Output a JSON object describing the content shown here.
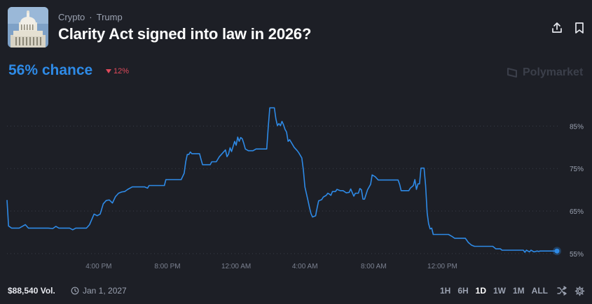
{
  "market": {
    "category": "Crypto",
    "subcategory": "Trump",
    "separator": "·",
    "title": "Clarity Act signed into law in 2026?",
    "chance_label": "56% chance",
    "change": "12%",
    "brand": "Polymarket"
  },
  "chart_data": {
    "type": "line",
    "x_labels": [
      "4:00 PM",
      "8:00 PM",
      "12:00 AM",
      "4:00 AM",
      "8:00 AM",
      "12:00 PM"
    ],
    "y_ticks": [
      "85%",
      "75%",
      "65%",
      "55%"
    ],
    "ylim": [
      53,
      90
    ],
    "grid": true,
    "series": [
      {
        "color": "#2e8ae6",
        "points": [
          [
            0,
            67.6
          ],
          [
            1,
            61.5
          ],
          [
            3,
            61.0
          ],
          [
            8,
            61.0
          ],
          [
            10,
            61.4
          ],
          [
            12,
            61.8
          ],
          [
            14,
            61.0
          ],
          [
            20,
            61.0
          ],
          [
            27,
            61.0
          ],
          [
            30,
            60.9
          ],
          [
            32,
            61.4
          ],
          [
            34,
            61.0
          ],
          [
            41,
            61.0
          ],
          [
            43,
            60.6
          ],
          [
            45,
            61.0
          ],
          [
            52,
            61.0
          ],
          [
            54,
            61.8
          ],
          [
            55,
            62.6
          ],
          [
            57,
            64.3
          ],
          [
            59,
            63.9
          ],
          [
            61,
            64.3
          ],
          [
            63,
            66.7
          ],
          [
            65,
            67.5
          ],
          [
            67,
            67.6
          ],
          [
            69,
            66.9
          ],
          [
            71,
            68.4
          ],
          [
            73,
            69.2
          ],
          [
            75,
            69.5
          ],
          [
            77,
            69.6
          ],
          [
            79,
            70.1
          ],
          [
            82,
            70.7
          ],
          [
            86,
            70.7
          ],
          [
            90,
            70.7
          ],
          [
            92,
            70.4
          ],
          [
            93,
            71.0
          ],
          [
            98,
            71.0
          ],
          [
            103,
            71.0
          ],
          [
            104,
            72.4
          ],
          [
            108,
            72.4
          ],
          [
            114,
            72.4
          ],
          [
            116,
            73.9
          ],
          [
            117,
            76.6
          ],
          [
            118,
            78.3
          ],
          [
            119,
            78.3
          ],
          [
            120,
            78.9
          ],
          [
            121,
            78.5
          ],
          [
            126,
            78.5
          ],
          [
            127,
            77.2
          ],
          [
            128,
            75.9
          ],
          [
            130,
            75.9
          ],
          [
            133,
            75.9
          ],
          [
            134,
            76.6
          ],
          [
            137,
            76.6
          ],
          [
            139,
            77.8
          ],
          [
            141,
            78.6
          ],
          [
            143,
            79.4
          ],
          [
            144,
            77.8
          ],
          [
            145,
            78.4
          ],
          [
            146,
            79.9
          ],
          [
            147,
            79.0
          ],
          [
            149,
            81.4
          ],
          [
            150,
            80.5
          ],
          [
            151,
            82.4
          ],
          [
            152,
            81.4
          ],
          [
            153,
            82.3
          ],
          [
            154,
            82.0
          ],
          [
            155,
            80.9
          ],
          [
            156,
            79.6
          ],
          [
            158,
            79.2
          ],
          [
            161,
            79.2
          ],
          [
            163,
            79.6
          ],
          [
            166,
            79.6
          ],
          [
            168,
            79.6
          ],
          [
            170,
            79.6
          ],
          [
            171,
            84.8
          ],
          [
            172,
            89.3
          ],
          [
            173,
            89.3
          ],
          [
            174,
            89.3
          ],
          [
            175,
            89.3
          ],
          [
            176,
            86.7
          ],
          [
            177,
            85.1
          ],
          [
            178,
            85.6
          ],
          [
            179,
            85.1
          ],
          [
            180,
            86.1
          ],
          [
            181,
            85.3
          ],
          [
            182,
            84.2
          ],
          [
            183,
            83.6
          ],
          [
            184,
            81.4
          ],
          [
            185,
            81.8
          ],
          [
            186,
            81.2
          ],
          [
            188,
            80.0
          ],
          [
            190,
            79.2
          ],
          [
            191,
            78.7
          ],
          [
            193,
            77.5
          ],
          [
            194,
            74.7
          ],
          [
            195,
            70.7
          ],
          [
            197,
            67.5
          ],
          [
            198,
            65.8
          ],
          [
            199,
            64.4
          ],
          [
            200,
            63.6
          ],
          [
            202,
            63.9
          ],
          [
            203,
            65.8
          ],
          [
            204,
            67.4
          ],
          [
            206,
            67.7
          ],
          [
            207,
            68.3
          ],
          [
            209,
            68.7
          ],
          [
            210,
            69.2
          ],
          [
            211,
            69.0
          ],
          [
            212,
            68.7
          ],
          [
            213,
            69.6
          ],
          [
            215,
            69.6
          ],
          [
            216,
            70.1
          ],
          [
            218,
            69.8
          ],
          [
            220,
            69.8
          ],
          [
            222,
            69.3
          ],
          [
            224,
            69.4
          ],
          [
            225,
            70.2
          ],
          [
            227,
            68.5
          ],
          [
            228,
            69.2
          ],
          [
            230,
            69.2
          ],
          [
            231,
            70.3
          ],
          [
            232,
            70.0
          ],
          [
            233,
            67.8
          ],
          [
            234,
            67.8
          ],
          [
            236,
            70.0
          ],
          [
            238,
            71.3
          ],
          [
            239,
            73.5
          ],
          [
            241,
            73.1
          ],
          [
            243,
            72.3
          ],
          [
            246,
            72.3
          ],
          [
            250,
            72.3
          ],
          [
            254,
            72.3
          ],
          [
            256,
            72.3
          ],
          [
            257,
            71.3
          ],
          [
            258,
            69.8
          ],
          [
            260,
            69.8
          ],
          [
            263,
            69.8
          ],
          [
            264,
            70.4
          ],
          [
            266,
            71.0
          ],
          [
            267,
            72.4
          ],
          [
            268,
            70.1
          ],
          [
            269,
            71.4
          ],
          [
            270,
            71.4
          ],
          [
            271,
            75.1
          ],
          [
            273,
            75.1
          ],
          [
            274,
            71.0
          ],
          [
            275,
            64.6
          ],
          [
            276,
            62.0
          ],
          [
            277,
            60.8
          ],
          [
            278,
            61.0
          ],
          [
            279,
            59.5
          ],
          [
            281,
            59.5
          ],
          [
            285,
            59.5
          ],
          [
            289,
            59.5
          ],
          [
            291,
            59.1
          ],
          [
            293,
            58.6
          ],
          [
            297,
            58.6
          ],
          [
            300,
            58.6
          ],
          [
            302,
            57.6
          ],
          [
            304,
            57.0
          ],
          [
            306,
            56.7
          ],
          [
            310,
            56.7
          ],
          [
            314,
            56.7
          ],
          [
            318,
            56.7
          ],
          [
            320,
            56.1
          ],
          [
            323,
            56.1
          ],
          [
            324,
            55.8
          ],
          [
            328,
            55.8
          ],
          [
            331,
            55.8
          ],
          [
            335,
            55.8
          ],
          [
            338,
            55.8
          ],
          [
            339,
            55.3
          ],
          [
            340,
            55.8
          ],
          [
            342,
            55.4
          ],
          [
            343,
            55.8
          ],
          [
            345,
            55.4
          ],
          [
            347,
            55.6
          ],
          [
            348,
            55.5
          ],
          [
            349,
            55.6
          ],
          [
            350,
            55.6
          ],
          [
            351,
            55.6
          ],
          [
            352,
            55.6
          ],
          [
            353,
            55.6
          ],
          [
            354,
            55.6
          ],
          [
            355,
            55.6
          ],
          [
            356,
            55.6
          ],
          [
            357,
            55.6
          ],
          [
            358,
            55.6
          ],
          [
            359,
            55.6
          ],
          [
            360,
            55.6
          ]
        ]
      }
    ],
    "current_value": 55.6
  },
  "footer": {
    "volume": "$88,540 Vol.",
    "end_date": "Jan 1, 2027",
    "ranges": [
      "1H",
      "6H",
      "1D",
      "1W",
      "1M",
      "ALL"
    ],
    "active_range": "1D"
  },
  "colors": {
    "accent": "#2e8ae6",
    "negative": "#e04a5b",
    "background": "#1d1f26",
    "grid": "#3a3e48"
  }
}
